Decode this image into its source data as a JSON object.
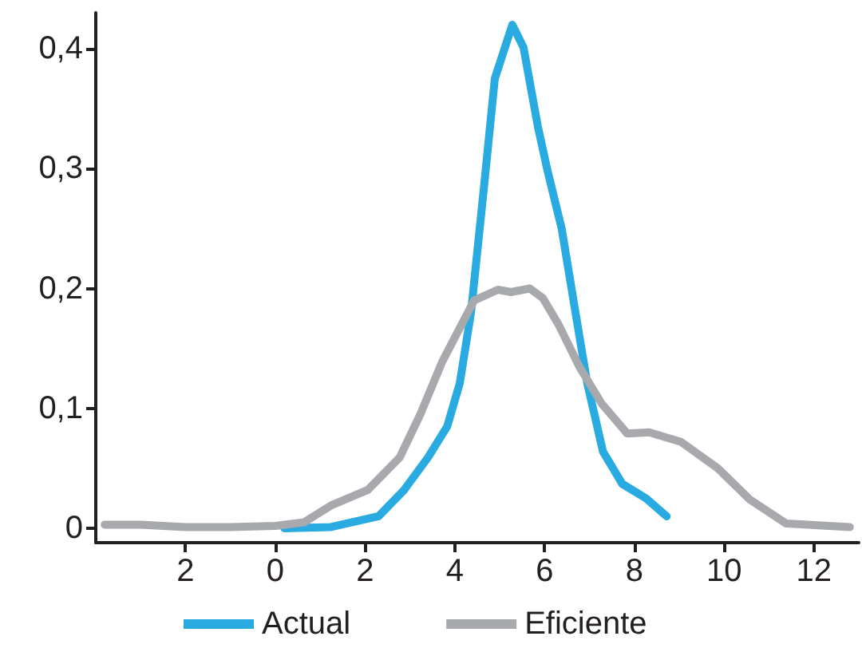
{
  "chart_data": {
    "type": "line",
    "legend": "bottom",
    "grid": false,
    "marker": "none",
    "line_style": "solid",
    "xlim": [
      -4,
      13
    ],
    "xticks": [
      {
        "value": -2,
        "label": "2"
      },
      0,
      2,
      4,
      6,
      8,
      10,
      12
    ],
    "ylim": [
      -0.012,
      0.43
    ],
    "yticks": [
      {
        "value": 0,
        "label": "0"
      },
      {
        "value": 0.1,
        "label": "0,1"
      },
      {
        "value": 0.2,
        "label": "0,2"
      },
      {
        "value": 0.3,
        "label": "0,3"
      },
      {
        "value": 0.4,
        "label": "0,4"
      }
    ],
    "series": [
      {
        "name": "Actual",
        "color": "#29abe2",
        "x": [
          0.2,
          1.24,
          2.3,
          2.87,
          3.4,
          3.83,
          4.11,
          4.36,
          4.65,
          4.89,
          5.28,
          5.53,
          5.85,
          6.06,
          6.38,
          6.67,
          6.95,
          7.3,
          7.73,
          8.26,
          8.72
        ],
        "values": [
          0,
          0.001,
          0.01,
          0.032,
          0.059,
          0.085,
          0.121,
          0.18,
          0.285,
          0.375,
          0.42,
          0.401,
          0.335,
          0.299,
          0.25,
          0.184,
          0.121,
          0.064,
          0.037,
          0.025,
          0.01
        ]
      },
      {
        "name": "Eficiente",
        "color": "#a7a9ac",
        "x": [
          -3.8,
          -3,
          -2,
          -1,
          0,
          0.64,
          1.24,
          2.06,
          2.77,
          3.23,
          3.72,
          4.43,
          4.96,
          5.25,
          5.67,
          5.96,
          6.31,
          6.77,
          7.27,
          7.84,
          8.33,
          9.04,
          9.86,
          10.57,
          11.38,
          12.8
        ],
        "values": [
          0.003,
          0.003,
          0.001,
          0.001,
          0.002,
          0.005,
          0.019,
          0.032,
          0.059,
          0.095,
          0.139,
          0.19,
          0.199,
          0.197,
          0.2,
          0.192,
          0.17,
          0.135,
          0.104,
          0.079,
          0.08,
          0.072,
          0.05,
          0.024,
          0.004,
          0.001
        ]
      }
    ]
  }
}
